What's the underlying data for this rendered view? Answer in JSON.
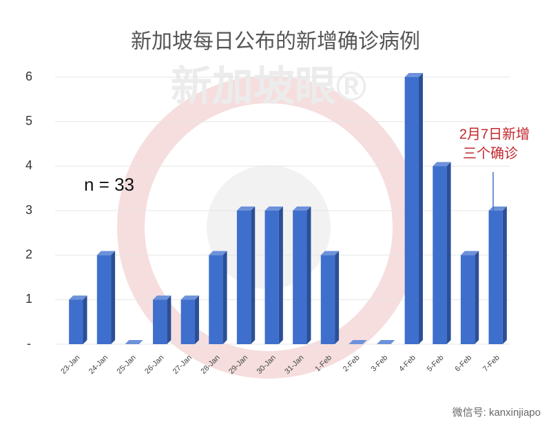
{
  "chart_data": {
    "type": "bar",
    "title": "新加坡每日公布的新增确诊病例",
    "categories": [
      "23-Jan",
      "24-Jan",
      "25-Jan",
      "26-Jan",
      "27-Jan",
      "28-Jan",
      "29-Jan",
      "30-Jan",
      "31-Jan",
      "1-Feb",
      "2-Feb",
      "3-Feb",
      "4-Feb",
      "5-Feb",
      "6-Feb",
      "7-Feb"
    ],
    "values": [
      1,
      2,
      0,
      1,
      1,
      2,
      3,
      3,
      3,
      2,
      0,
      0,
      6,
      4,
      2,
      3
    ],
    "color": "#3f6fcc",
    "ylim": [
      0,
      6
    ],
    "yticks": [
      {
        "value": 0,
        "label": "-"
      },
      1,
      2,
      3,
      4,
      5,
      6
    ],
    "grid": true,
    "annotations": [
      "n = 33",
      "2月7日新增",
      "三个确诊"
    ],
    "watermark": "新加坡眼®",
    "footer": "微信号: kanxinjiapo"
  }
}
